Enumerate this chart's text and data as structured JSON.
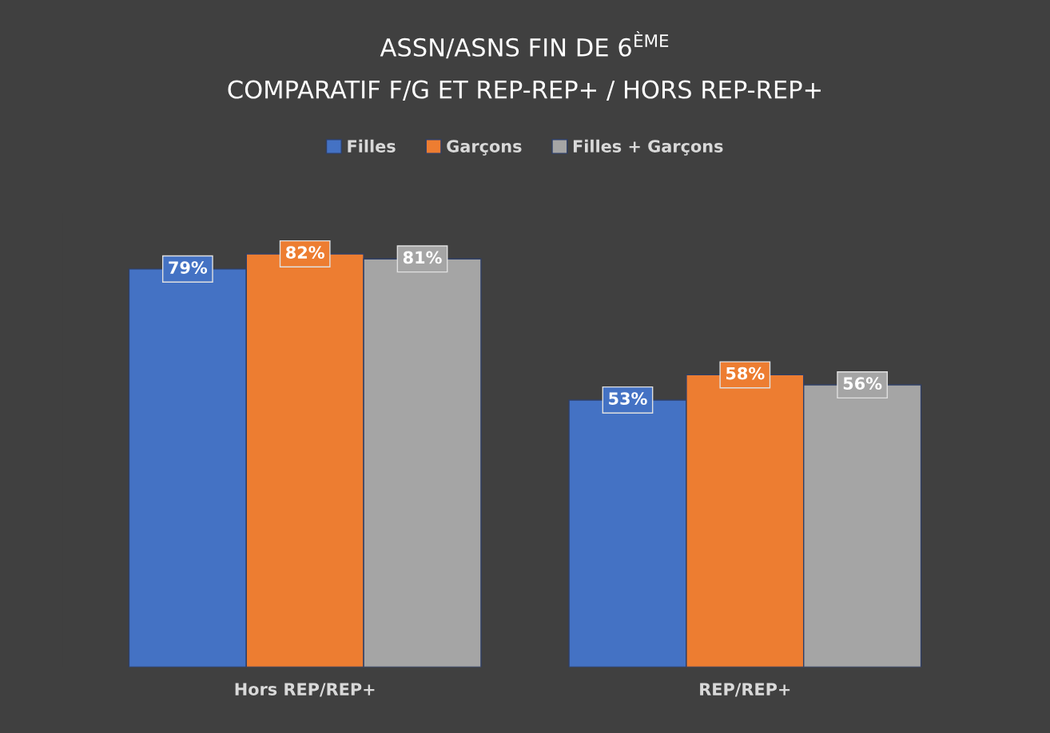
{
  "chart_data": {
    "type": "bar",
    "title": "ASSN/ASNS FIN DE 6$^{ÈME}$",
    "subtitle": "COMPARATIF F/G ET REP-REP+ / HORS REP-REP+",
    "categories": [
      "Hors REP/REP+",
      "REP/REP+"
    ],
    "series": [
      {
        "name": "Filles",
        "color": "#4472c4",
        "values": [
          79,
          53
        ],
        "value_labels": [
          "79%",
          "53%"
        ]
      },
      {
        "name": "Garçons",
        "color": "#ed7d31",
        "values": [
          82,
          58
        ],
        "value_labels": [
          "82%",
          "58%"
        ]
      },
      {
        "name": "Filles + Garçons",
        "color": "#a5a5a5",
        "values": [
          81,
          56
        ],
        "value_labels": [
          "81%",
          "56%"
        ]
      }
    ],
    "legend": "top",
    "grid": false
  }
}
